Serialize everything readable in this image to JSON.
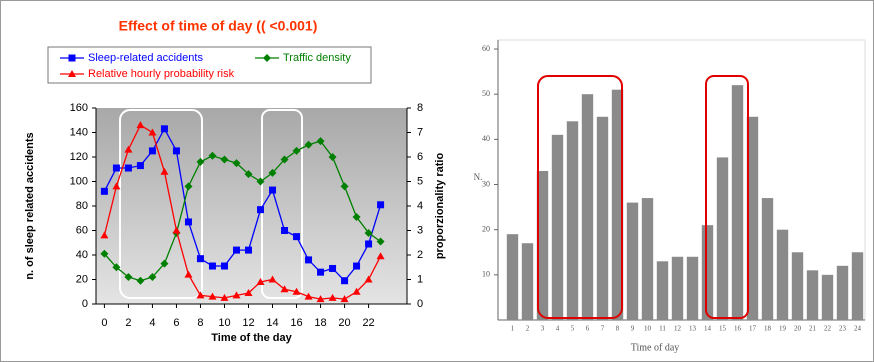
{
  "chart_data": [
    {
      "type": "line",
      "title": "Effect of time of day (( <0.001)",
      "x": [
        0,
        1,
        2,
        3,
        4,
        5,
        6,
        7,
        8,
        9,
        10,
        11,
        12,
        13,
        14,
        15,
        16,
        17,
        18,
        19,
        20,
        21,
        22,
        23
      ],
      "series": [
        {
          "name": "Sleep-related accidents",
          "color": "#0000ff",
          "marker": "square",
          "values": [
            92,
            111,
            111,
            113,
            125,
            143,
            125,
            67,
            37,
            31,
            31,
            44,
            44,
            77,
            93,
            60,
            55,
            36,
            26,
            29,
            19,
            31,
            49,
            81
          ]
        },
        {
          "name": "Traffic density",
          "color": "#008000",
          "marker": "diamond",
          "values": [
            41,
            30,
            22,
            19,
            22,
            33,
            58,
            96,
            116,
            121,
            118,
            115,
            106,
            100,
            107,
            118,
            125,
            130,
            133,
            120,
            96,
            71,
            58,
            51
          ]
        },
        {
          "name": "Relative hourly probability risk",
          "color": "#ff0000",
          "marker": "triangle",
          "axis": "y2",
          "values": [
            2.8,
            4.8,
            6.3,
            7.3,
            7.0,
            5.4,
            3.0,
            1.2,
            0.35,
            0.3,
            0.25,
            0.35,
            0.45,
            0.9,
            1.0,
            0.6,
            0.5,
            0.3,
            0.2,
            0.25,
            0.2,
            0.5,
            1.0,
            1.95
          ]
        }
      ],
      "xlim": [
        -0.7,
        25.2
      ],
      "xticks": [
        0,
        2,
        4,
        6,
        8,
        10,
        12,
        14,
        16,
        18,
        20,
        22
      ],
      "ylim": [
        0,
        160
      ],
      "yticks": [
        0,
        20,
        40,
        60,
        80,
        100,
        120,
        140,
        160
      ],
      "y2lim": [
        0,
        8
      ],
      "y2ticks": [
        0,
        1,
        2,
        3,
        4,
        5,
        6,
        7,
        8
      ],
      "ylabel": "n. of sleep related accidents",
      "y2label": "proporzionality ratio",
      "xlabel": "Time of the day",
      "legend": "top"
    },
    {
      "type": "bar",
      "categories": [
        "1",
        "2",
        "3",
        "4",
        "5",
        "6",
        "7",
        "8",
        "9",
        "10",
        "11",
        "12",
        "13",
        "14",
        "15",
        "16",
        "17",
        "18",
        "19",
        "20",
        "21",
        "22",
        "23",
        "24"
      ],
      "values": [
        19,
        17,
        33,
        41,
        44,
        50,
        45,
        51,
        26,
        27,
        13,
        14,
        14,
        21,
        36,
        52,
        45,
        27,
        20,
        15,
        11,
        10,
        12,
        15
      ],
      "color": "#8a8a8a",
      "ylim": [
        0,
        62
      ],
      "yticks": [
        10,
        20,
        30,
        40,
        50,
        60
      ],
      "ylabel": "N.",
      "xlabel": "Time of day"
    }
  ]
}
